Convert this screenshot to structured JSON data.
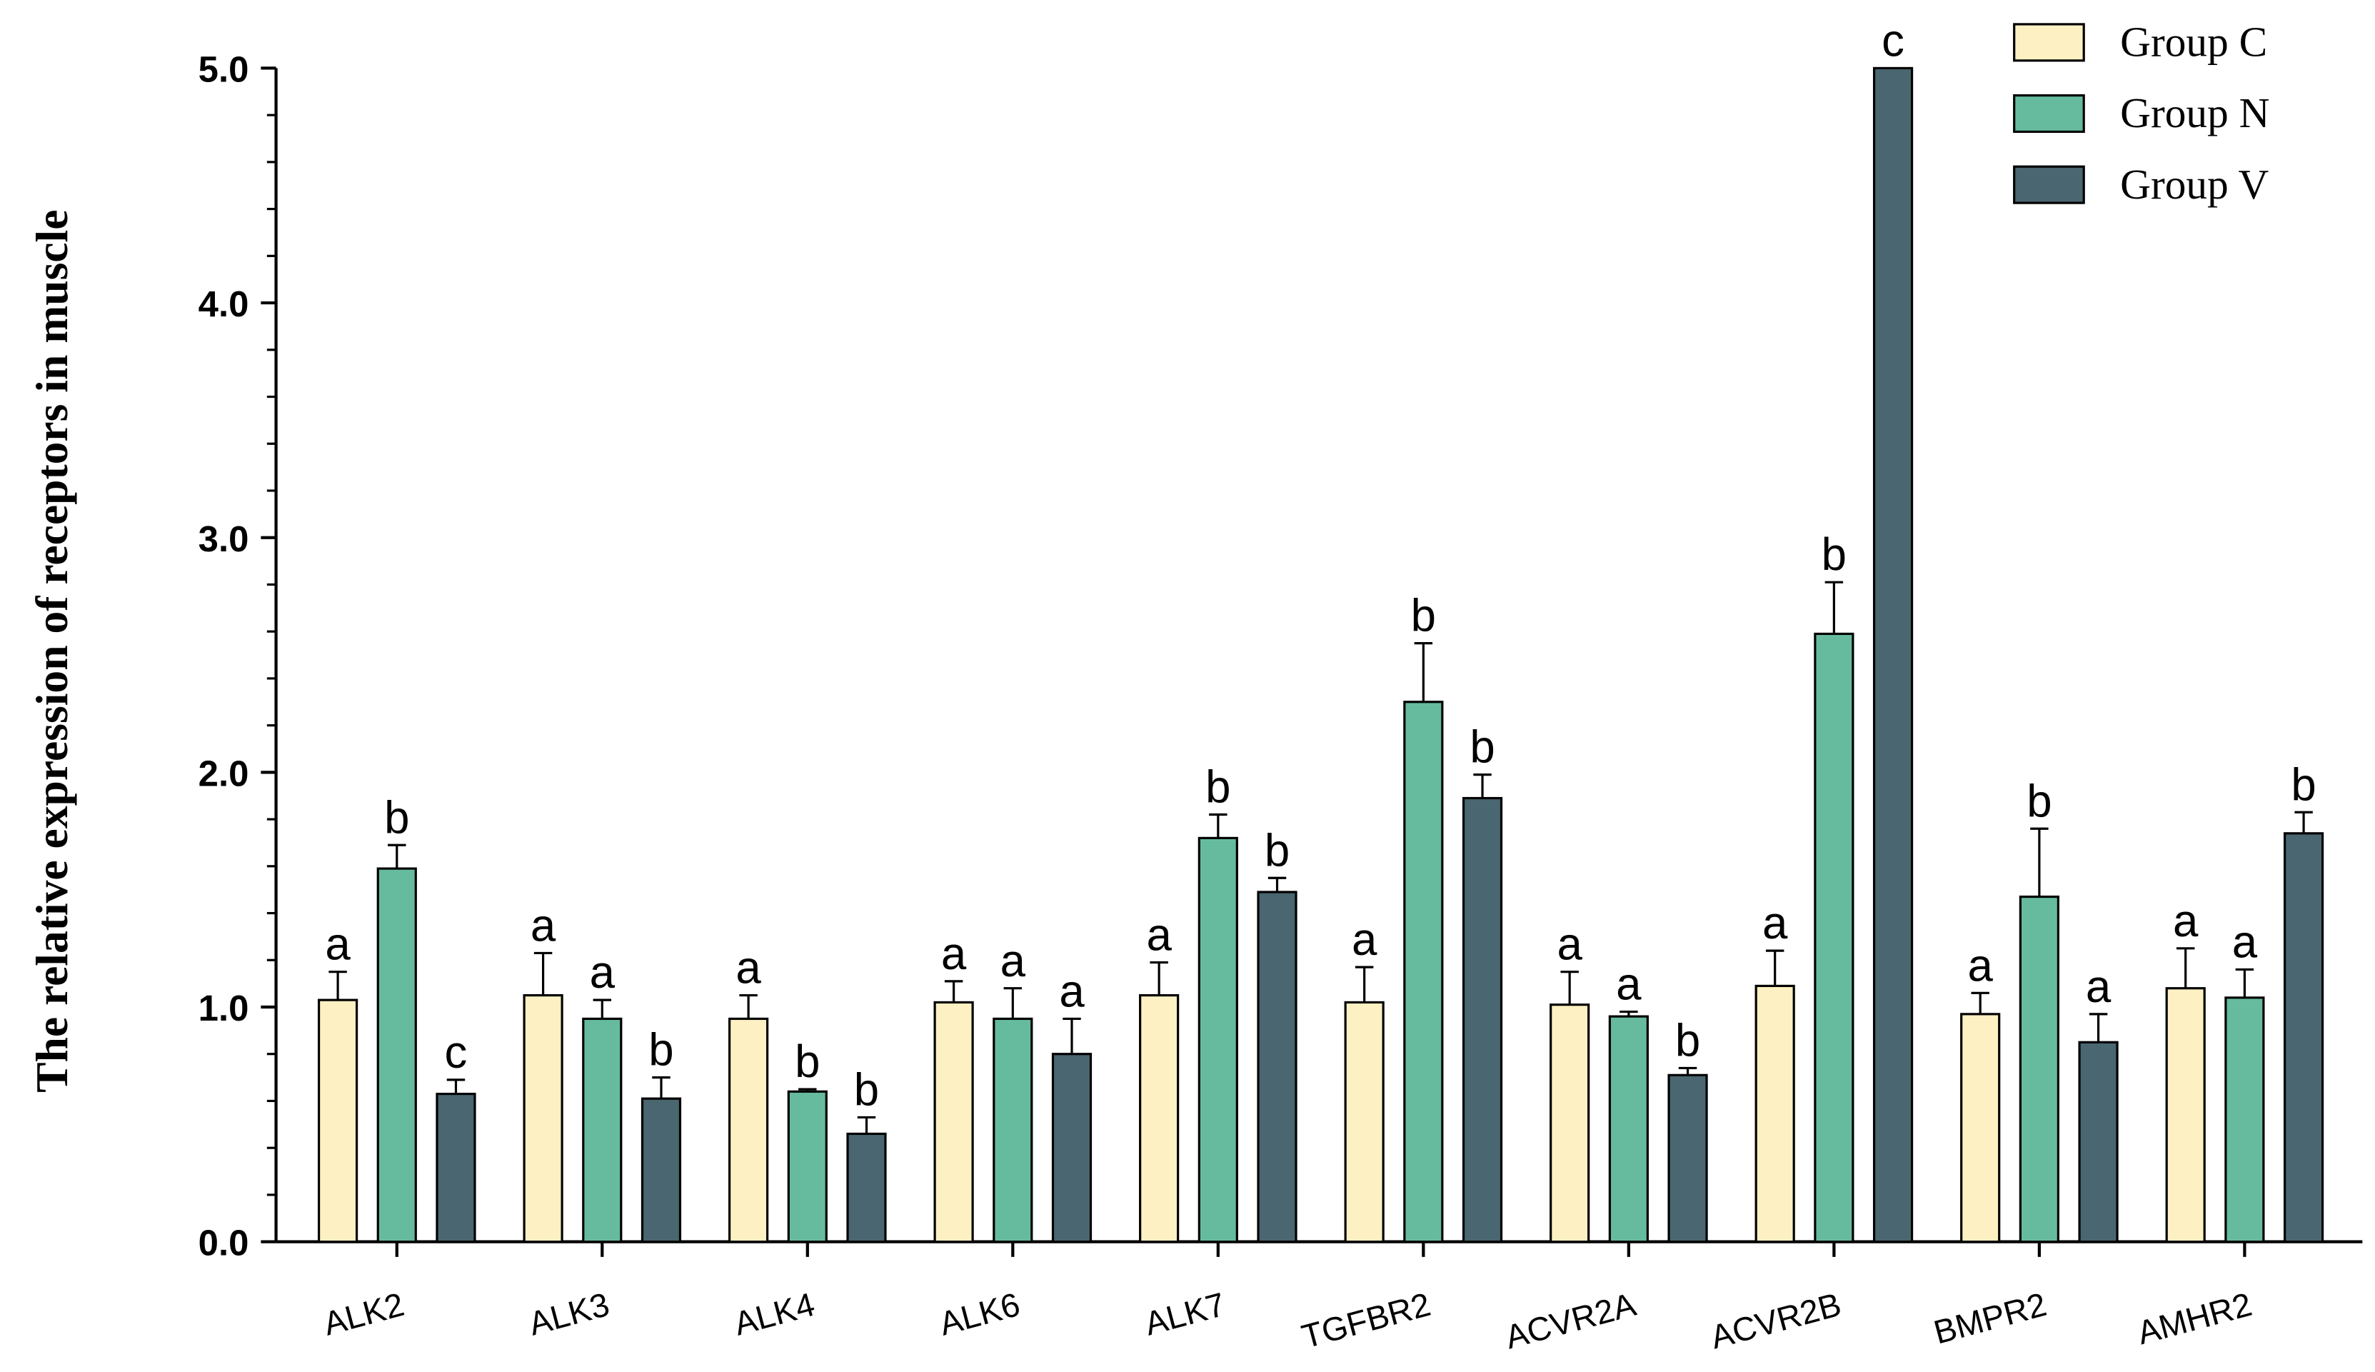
{
  "chart_data": {
    "type": "grouped_bar_error",
    "y_label": "The relative expression of receptors in muscle",
    "categories": [
      "ALK2",
      "ALK3",
      "ALK4",
      "ALK6",
      "ALK7",
      "TGFBR2",
      "ACVR2A",
      "ACVR2B",
      "BMPR2",
      "AMHR2"
    ],
    "series": [
      {
        "name": "Group C",
        "color": "#fdf0c2",
        "values": [
          1.03,
          1.05,
          0.95,
          1.02,
          1.05,
          1.02,
          1.01,
          1.09,
          0.97,
          1.08
        ],
        "errors": [
          0.12,
          0.18,
          0.1,
          0.09,
          0.14,
          0.15,
          0.14,
          0.15,
          0.09,
          0.17
        ],
        "letters": [
          "a",
          "a",
          "a",
          "a",
          "a",
          "a",
          "a",
          "a",
          "a",
          "a"
        ]
      },
      {
        "name": "Group N",
        "color": "#66bb9f",
        "values": [
          1.59,
          0.95,
          0.64,
          0.95,
          1.72,
          2.3,
          0.96,
          2.59,
          1.47,
          1.04
        ],
        "errors": [
          0.1,
          0.08,
          0.01,
          0.13,
          0.1,
          0.25,
          0.02,
          0.22,
          0.29,
          0.12
        ],
        "letters": [
          "b",
          "a",
          "b",
          "a",
          "b",
          "b",
          "a",
          "b",
          "b",
          "a"
        ]
      },
      {
        "name": "Group V",
        "color": "#4a6670",
        "values": [
          0.63,
          0.61,
          0.46,
          0.8,
          1.49,
          1.89,
          0.71,
          5.0,
          0.85,
          1.74
        ],
        "errors": [
          0.06,
          0.09,
          0.07,
          0.15,
          0.06,
          0.1,
          0.03,
          null,
          0.12,
          0.09
        ],
        "letters": [
          "c",
          "b",
          "b",
          "a",
          "b",
          "b",
          "b",
          "c",
          "a",
          "b"
        ]
      }
    ],
    "ylim": [
      0,
      5
    ],
    "yticks": [
      {
        "value": 0,
        "label": "0.0"
      },
      {
        "value": 1,
        "label": "1.0"
      },
      {
        "value": 2,
        "label": "2.0"
      },
      {
        "value": 3,
        "label": "3.0"
      },
      {
        "value": 4,
        "label": "4.0"
      },
      {
        "value": 5,
        "label": "5.0"
      }
    ],
    "minor_yticks": [
      0.2,
      0.4,
      0.6,
      0.8,
      1.2,
      1.4,
      1.6,
      1.8,
      2.2,
      2.4,
      2.6,
      2.8,
      3.2,
      3.4,
      3.6,
      3.8,
      4.2,
      4.4,
      4.6,
      4.8
    ],
    "legend": "top-right"
  }
}
